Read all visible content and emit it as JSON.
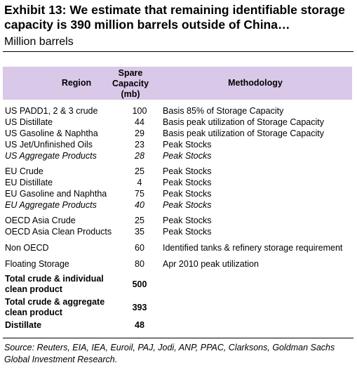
{
  "title": "Exhibit 13: We estimate that remaining identifiable storage capacity is 390 million barrels outside of China…",
  "subtitle": "Million barrels",
  "headers": {
    "region": "Region",
    "spare": "Spare Capacity (mb)",
    "methodology": "Methodology"
  },
  "rows": [
    {
      "region": "US PADD1, 2 & 3 crude",
      "capacity": "100",
      "methodology": "Basis 85% of Storage Capacity"
    },
    {
      "region": "US Distillate",
      "capacity": "44",
      "methodology": "Basis peak utilization of Storage Capacity"
    },
    {
      "region": "US Gasoline & Naphtha",
      "capacity": "29",
      "methodology": "Basis peak utilization of Storage Capacity"
    },
    {
      "region": "US Jet/Unfinished Oils",
      "capacity": "23",
      "methodology": "Peak Stocks"
    },
    {
      "region": "US Aggregate Products",
      "capacity": "28",
      "methodology": "Peak Stocks"
    },
    {
      "region": "EU Crude",
      "capacity": "25",
      "methodology": "Peak Stocks"
    },
    {
      "region": "EU Distillate",
      "capacity": "4",
      "methodology": "Peak Stocks"
    },
    {
      "region": "EU Gasoline and Naphtha",
      "capacity": "75",
      "methodology": "Peak Stocks"
    },
    {
      "region": "EU Aggregate Products",
      "capacity": "40",
      "methodology": "Peak Stocks"
    },
    {
      "region": "OECD Asia Crude",
      "capacity": "25",
      "methodology": "Peak Stocks"
    },
    {
      "region": "OECD Asia Clean Products",
      "capacity": "35",
      "methodology": "Peak Stocks"
    },
    {
      "region": "Non OECD",
      "capacity": "60",
      "methodology": "Identified tanks & refinery storage requirement"
    },
    {
      "region": "Floating Storage",
      "capacity": "80",
      "methodology": "Apr 2010 peak utilization"
    }
  ],
  "totals": [
    {
      "label": "Total crude & individual clean product",
      "value": "500"
    },
    {
      "label": "Total crude & aggregate clean product",
      "value": "393"
    },
    {
      "label": "Distillate",
      "value": "48"
    }
  ],
  "source": "Source: Reuters, EIA, IEA, Euroil, PAJ, Jodi, ANP, PPAC, Clarksons, Goldman Sachs Global Investment Research."
}
